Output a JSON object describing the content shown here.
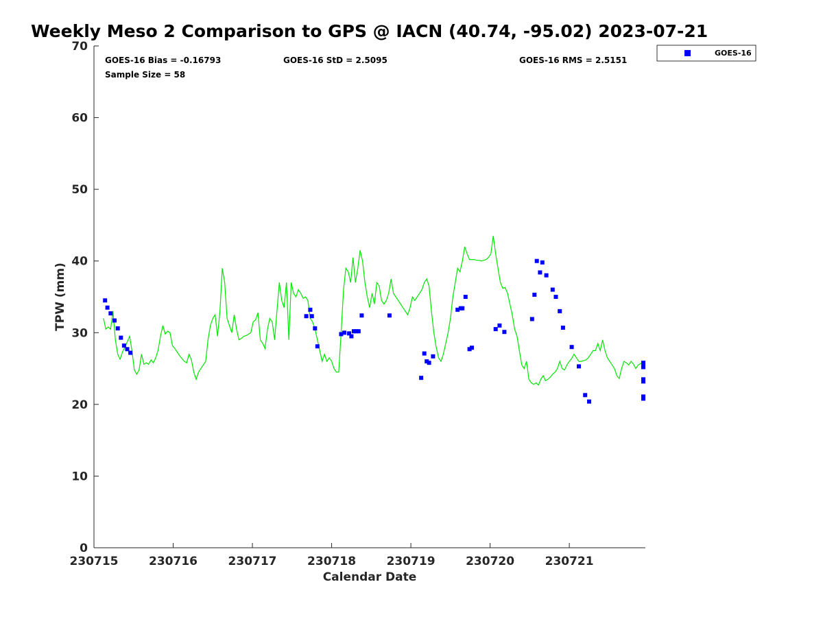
{
  "chart_data": {
    "type": "scatter+line",
    "title": "Weekly Meso 2 Comparison to GPS @ IACN (40.74, -95.02) 2023-07-21",
    "xlabel": "Calendar Date",
    "ylabel": "TPW (mm)",
    "xlim": [
      0,
      6.96
    ],
    "ylim": [
      0,
      70
    ],
    "x_unit": "days since 230715",
    "x_ticks": [
      {
        "value": 0,
        "label": "230715"
      },
      {
        "value": 1,
        "label": "230716"
      },
      {
        "value": 2,
        "label": "230717"
      },
      {
        "value": 3,
        "label": "230718"
      },
      {
        "value": 4,
        "label": "230719"
      },
      {
        "value": 5,
        "label": "230720"
      },
      {
        "value": 6,
        "label": "230721"
      }
    ],
    "y_ticks": [
      0,
      10,
      20,
      30,
      40,
      50,
      60,
      70
    ],
    "stats": {
      "bias": "GOES-16 Bias = -0.16793",
      "std": "GOES-16 StD = 2.5095",
      "rms": "GOES-16 RMS = 2.5151",
      "sample": "Sample Size = 58"
    },
    "legend": {
      "label": "GOES-16",
      "position": "top-right outside"
    },
    "series": [
      {
        "name": "GPS",
        "kind": "line",
        "color": "#00e600",
        "x": [
          0.12,
          0.15,
          0.18,
          0.21,
          0.24,
          0.27,
          0.3,
          0.33,
          0.36,
          0.39,
          0.42,
          0.45,
          0.48,
          0.51,
          0.54,
          0.57,
          0.6,
          0.63,
          0.66,
          0.69,
          0.72,
          0.75,
          0.78,
          0.81,
          0.84,
          0.87,
          0.9,
          0.93,
          0.96,
          0.99,
          1.02,
          1.05,
          1.08,
          1.11,
          1.14,
          1.17,
          1.2,
          1.23,
          1.26,
          1.29,
          1.32,
          1.35,
          1.38,
          1.41,
          1.44,
          1.47,
          1.5,
          1.53,
          1.56,
          1.59,
          1.62,
          1.65,
          1.68,
          1.71,
          1.74,
          1.77,
          1.8,
          1.83,
          1.86,
          1.89,
          1.92,
          1.95,
          1.98,
          2.01,
          2.04,
          2.07,
          2.1,
          2.13,
          2.16,
          2.19,
          2.22,
          2.25,
          2.28,
          2.31,
          2.34,
          2.37,
          2.4,
          2.43,
          2.46,
          2.49,
          2.52,
          2.55,
          2.58,
          2.61,
          2.64,
          2.67,
          2.7,
          2.73,
          2.76,
          2.79,
          2.82,
          2.85,
          2.88,
          2.91,
          2.94,
          2.97,
          3.0,
          3.03,
          3.06,
          3.09,
          3.12,
          3.15,
          3.18,
          3.21,
          3.24,
          3.27,
          3.3,
          3.33,
          3.36,
          3.39,
          3.42,
          3.45,
          3.48,
          3.51,
          3.54,
          3.57,
          3.6,
          3.63,
          3.66,
          3.69,
          3.72,
          3.75,
          3.78,
          3.81,
          3.84,
          3.87,
          3.9,
          3.93,
          3.96,
          3.99,
          4.02,
          4.05,
          4.08,
          4.11,
          4.14,
          4.17,
          4.2,
          4.23,
          4.26,
          4.29,
          4.32,
          4.35,
          4.38,
          4.41,
          4.44,
          4.47,
          4.5,
          4.53,
          4.56,
          4.59,
          4.62,
          4.65,
          4.68,
          4.71,
          4.74,
          4.77,
          4.8,
          4.83,
          4.86,
          4.89,
          4.92,
          4.95,
          4.98,
          5.01,
          5.04,
          5.07,
          5.1,
          5.13,
          5.16,
          5.19,
          5.22,
          5.25,
          5.28,
          5.31,
          5.34,
          5.37,
          5.4,
          5.43,
          5.46,
          5.49,
          5.52,
          5.55,
          5.58,
          5.61,
          5.64,
          5.67,
          5.7,
          5.73,
          5.76,
          5.79,
          5.82,
          5.85,
          5.88,
          5.91,
          5.94,
          5.97,
          6.0,
          6.03,
          6.06,
          6.09,
          6.12,
          6.15,
          6.18,
          6.21,
          6.24,
          6.27,
          6.3,
          6.33,
          6.36,
          6.39,
          6.42,
          6.45,
          6.48,
          6.51,
          6.54,
          6.57,
          6.6,
          6.63,
          6.66,
          6.69,
          6.72,
          6.75,
          6.78,
          6.81,
          6.84,
          6.87,
          6.9,
          6.93
        ],
        "y": [
          32,
          30.5,
          30.8,
          30.5,
          33,
          29,
          27,
          26.3,
          27.3,
          28,
          28.7,
          29.5,
          27.5,
          24.8,
          24.2,
          24.8,
          27,
          25.6,
          25.8,
          25.6,
          26.2,
          25.8,
          26.5,
          27.6,
          29.5,
          31,
          29.8,
          30.2,
          30,
          28.2,
          27.8,
          27.3,
          26.8,
          26.4,
          26,
          25.8,
          27,
          26.2,
          24.5,
          23.5,
          24.5,
          25,
          25.5,
          26,
          29,
          31,
          32,
          32.5,
          29.5,
          33,
          39,
          37,
          32,
          31,
          30,
          32.5,
          30.5,
          29,
          29.2,
          29.5,
          29.6,
          29.8,
          30,
          31.5,
          31.8,
          32.8,
          29,
          28.5,
          27.8,
          30.5,
          32,
          31.5,
          29,
          33,
          37,
          34.5,
          33.5,
          37,
          29,
          37,
          35.5,
          35,
          36,
          35.5,
          34.8,
          35,
          34.5,
          32,
          31.5,
          30.5,
          29,
          27.5,
          26,
          27,
          26,
          26.5,
          26,
          25,
          24.5,
          24.5,
          30,
          36,
          39,
          38.5,
          37,
          40.5,
          37,
          39,
          41.5,
          40,
          37,
          35,
          33.5,
          35.5,
          34,
          37,
          36.5,
          34.5,
          34,
          34.5,
          35.5,
          37.5,
          35.5,
          35,
          34.5,
          34,
          33.5,
          33,
          32.5,
          33.5,
          35,
          34.5,
          35,
          35.5,
          36,
          37,
          37.5,
          36.5,
          33,
          30,
          28,
          26.5,
          26,
          27,
          28.5,
          30,
          32,
          35,
          37,
          39,
          38.5,
          40,
          42,
          41,
          40.2,
          40.2,
          40.2,
          40.1,
          40.1,
          40,
          40.1,
          40.2,
          40.5,
          41,
          43.5,
          41,
          39,
          37,
          36.2,
          36.3,
          35.5,
          34,
          32.5,
          30.5,
          29.5,
          27.5,
          25.5,
          25,
          26,
          23.5,
          23,
          22.8,
          23,
          22.7,
          23.5,
          24,
          23.3,
          23.5,
          23.8,
          24.2,
          24.5,
          25,
          26,
          25,
          24.8,
          25.5,
          26,
          26.4,
          27,
          26.5,
          26,
          26,
          26.1,
          26.2,
          26.5,
          27,
          27.5,
          27.5,
          28.5,
          27.5,
          29,
          27.5,
          26.5,
          26,
          25.5,
          25,
          24,
          23.6,
          25,
          26,
          25.8,
          25.5,
          26,
          25.6,
          25,
          25.5,
          25.7,
          25.9
        ]
      },
      {
        "name": "GOES-16",
        "kind": "markers",
        "color": "#0000ff",
        "x": [
          0.14,
          0.17,
          0.21,
          0.26,
          0.3,
          0.34,
          0.38,
          0.42,
          0.46,
          2.68,
          2.73,
          2.75,
          2.79,
          2.82,
          3.12,
          3.16,
          3.22,
          3.25,
          3.28,
          3.31,
          3.34,
          3.38,
          3.73,
          4.13,
          4.17,
          4.2,
          4.23,
          4.28,
          4.59,
          4.63,
          4.65,
          4.69,
          4.74,
          4.77,
          5.07,
          5.12,
          5.18,
          5.53,
          5.56,
          5.59,
          5.63,
          5.66,
          5.71,
          5.79,
          5.83,
          5.88,
          5.92,
          6.03,
          6.12,
          6.2,
          6.25,
          6.95,
          7.0,
          7.04,
          7.06,
          7.08,
          7.1,
          7.14
        ],
        "y": [
          34.5,
          33.5,
          32.7,
          31.7,
          30.6,
          29.3,
          28.2,
          27.7,
          27.2,
          32.3,
          33.2,
          32.3,
          30.6,
          28.1,
          29.8,
          30,
          29.9,
          29.5,
          30.2,
          30.2,
          30.2,
          32.4,
          32.4,
          23.7,
          27.1,
          26,
          25.8,
          26.7,
          33.2,
          33.4,
          33.4,
          35,
          27.7,
          27.9,
          30.5,
          31,
          30.1,
          31.9,
          35.3,
          40,
          38.4,
          39.8,
          38,
          36,
          35,
          33,
          30.7,
          28,
          25.3,
          21.3,
          20.4,
          20.8,
          21.1,
          23.5,
          23.2,
          25.2,
          25.5,
          25.8
        ]
      }
    ]
  }
}
